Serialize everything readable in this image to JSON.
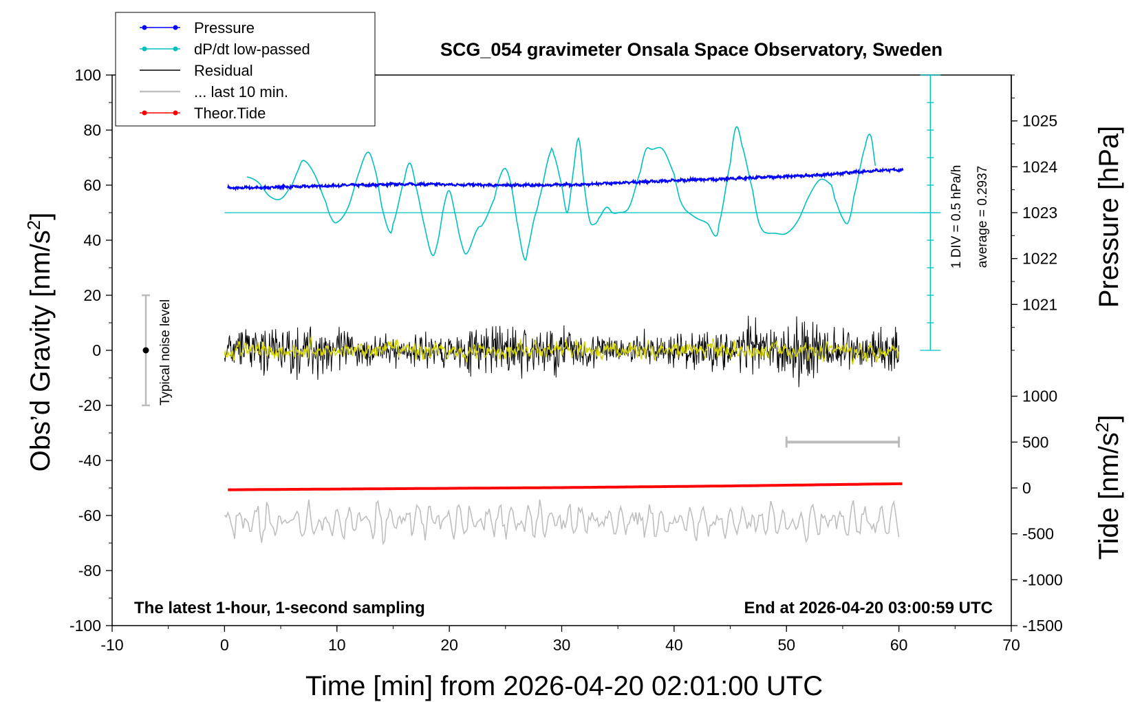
{
  "chart_data": {
    "type": "line",
    "title": "SCG_054 gravimeter Onsala Space Observatory, Sweden",
    "xlabel": "Time [min] from 2026-04-20 02:01:00 UTC",
    "ylabel_left_main": "Obs’d Gravity [nm/s",
    "ylabel_left_sup": "2",
    "ylabel_left_end": "]",
    "ylabel_right_top": "Pressure [hPa]",
    "ylabel_right_bottom_main": "Tide [nm/s",
    "ylabel_right_bottom_sup": "2",
    "ylabel_right_bottom_end": "]",
    "xlim": [
      -10,
      70
    ],
    "ylim_left": [
      -100,
      100
    ],
    "pressure_ylim": [
      1020,
      1026
    ],
    "tide_ylim": [
      -1500,
      1500
    ],
    "x_ticks": [
      -10,
      0,
      10,
      20,
      30,
      40,
      50,
      60,
      70
    ],
    "y_ticks_left": [
      -100,
      -80,
      -60,
      -40,
      -20,
      0,
      20,
      40,
      60,
      80,
      100
    ],
    "pressure_ticks": [
      1021,
      1022,
      1023,
      1024,
      1025
    ],
    "tide_ticks": [
      -1500,
      -1000,
      -500,
      0,
      500,
      1000
    ],
    "legend": {
      "placement": "top-left",
      "entries": [
        {
          "label": "Pressure",
          "color": "#0000ff",
          "marker": true
        },
        {
          "label": "dP/dt low-passed",
          "color": "#00c0c0",
          "marker": true
        },
        {
          "label": "Residual",
          "color": "#000000",
          "marker": false
        },
        {
          "label": "... last 10 min.",
          "color": "#bfbfbf",
          "marker": false
        },
        {
          "label": "Theor.Tide",
          "color": "#ff0000",
          "marker": true
        }
      ]
    },
    "annotations": {
      "bottom_left": "The latest 1-hour, 1-second sampling",
      "bottom_right": "End at 2026-04-20 03:00:59 UTC",
      "noise": "Typical noise level",
      "div": "1 DIV = 0.5 hPa/h",
      "average": "average = 0.2937"
    },
    "noise_bar": {
      "x": -7,
      "y": 0,
      "ymin": -20,
      "ymax": 20
    },
    "last10_bar": {
      "x": [
        50,
        60
      ],
      "tide_value": 500
    },
    "dpdt_zero_line_left_units": 50,
    "colors": {
      "pressure": "#0000ff",
      "dpdt": "#00c0c0",
      "residual": "#000000",
      "last10": "#bfbfbf",
      "tide": "#ff0000",
      "residual_lowpass": "#d4d400",
      "scale_bar": "#00c0c0"
    },
    "series": [
      {
        "name": "Pressure",
        "unit": "hPa",
        "x": [
          0,
          1,
          2,
          3,
          4,
          5,
          6,
          7,
          8,
          9,
          10,
          11,
          12,
          13,
          14,
          15,
          16,
          17,
          18,
          19,
          20,
          21,
          22,
          23,
          24,
          25,
          26,
          27,
          28,
          29,
          30,
          31,
          32,
          33,
          34,
          35,
          36,
          37,
          38,
          39,
          40,
          41,
          42,
          43,
          44,
          45,
          46,
          47,
          48,
          49,
          50,
          51,
          52,
          53,
          54,
          55,
          56,
          57,
          58,
          59,
          60
        ],
        "y": [
          1023.56,
          1023.53,
          1023.55,
          1023.54,
          1023.55,
          1023.56,
          1023.56,
          1023.57,
          1023.58,
          1023.58,
          1023.59,
          1023.6,
          1023.6,
          1023.6,
          1023.61,
          1023.62,
          1023.62,
          1023.62,
          1023.62,
          1023.62,
          1023.61,
          1023.61,
          1023.61,
          1023.6,
          1023.6,
          1023.6,
          1023.6,
          1023.6,
          1023.6,
          1023.6,
          1023.61,
          1023.61,
          1023.62,
          1023.63,
          1023.64,
          1023.65,
          1023.66,
          1023.67,
          1023.68,
          1023.69,
          1023.7,
          1023.71,
          1023.72,
          1023.72,
          1023.73,
          1023.74,
          1023.75,
          1023.76,
          1023.77,
          1023.78,
          1023.79,
          1023.8,
          1023.81,
          1023.82,
          1023.84,
          1023.86,
          1023.88,
          1023.9,
          1023.92,
          1023.93,
          1023.93
        ]
      },
      {
        "name": "dP/dt low-passed",
        "unit": "left-axis units",
        "x": [
          2,
          3,
          4,
          5,
          6,
          6.5,
          7,
          8,
          9,
          9.5,
          10,
          11,
          12,
          12.8,
          13.5,
          14,
          14.7,
          15,
          16,
          16.5,
          17,
          17.8,
          18.5,
          19,
          19.5,
          20,
          20.6,
          21,
          21.5,
          22.5,
          23,
          24,
          24.5,
          25,
          25.5,
          26,
          26.7,
          27,
          27.5,
          28,
          29,
          29.3,
          30,
          30.5,
          31,
          31.5,
          32,
          32.5,
          33,
          33.3,
          34,
          34.5,
          35,
          36,
          37,
          37.5,
          38,
          39,
          40,
          40.5,
          41,
          42,
          43,
          43.7,
          44,
          45,
          45.5,
          46,
          47,
          47.5,
          48,
          49,
          50,
          51,
          52,
          53,
          54,
          54.3,
          55,
          55.5,
          56,
          57,
          57.5,
          58
        ],
        "y": [
          63,
          61,
          56,
          55,
          60,
          65,
          69,
          64,
          54,
          48,
          46.5,
          52,
          65,
          72,
          64,
          52,
          43,
          46,
          62,
          68,
          60,
          45,
          34.5,
          40,
          52,
          58,
          48,
          40,
          35,
          44,
          46,
          55,
          63,
          66,
          60,
          47,
          33,
          37,
          47,
          55,
          72,
          71,
          60,
          50,
          64,
          77,
          60,
          47,
          46,
          48,
          52,
          50,
          50,
          52,
          65,
          73,
          73,
          73,
          64,
          55,
          51,
          48,
          46,
          41.5,
          46,
          68,
          81,
          75,
          58,
          47,
          43,
          42.5,
          42.5,
          47,
          56,
          62,
          60,
          55,
          48,
          46.5,
          56,
          74,
          78,
          65
        ]
      },
      {
        "name": "Theor.Tide",
        "unit": "nm/s2",
        "x": [
          0,
          5,
          10,
          15,
          20,
          25,
          30,
          35,
          40,
          45,
          50,
          55,
          60
        ],
        "y": [
          -20,
          -16,
          -12,
          -8,
          -4,
          0,
          4,
          10,
          16,
          22,
          30,
          38,
          46
        ]
      }
    ]
  }
}
